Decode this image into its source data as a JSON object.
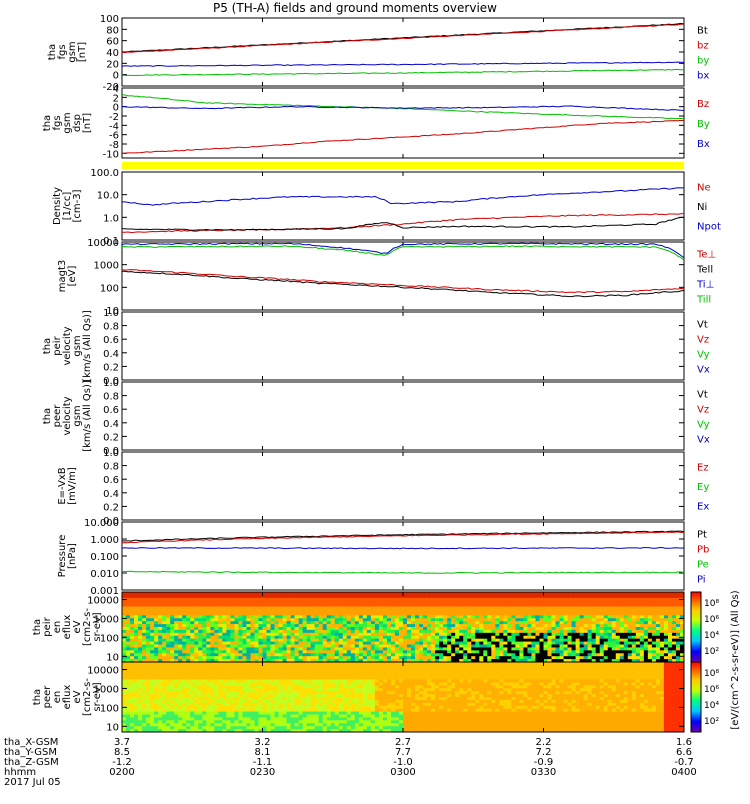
{
  "title": "P5 (TH-A) fields and ground moments overview",
  "colors": {
    "black": "#000000",
    "red": "#d00000",
    "green": "#00c000",
    "blue": "#0000c8",
    "yellow": "#ffff00"
  },
  "chart_data": [
    {
      "id": "fgs-gsm",
      "type": "line",
      "ylabel": [
        "tha",
        "fgs",
        "gsm",
        "[nT]"
      ],
      "yticks": [
        "100",
        "80",
        "60",
        "40",
        "20",
        "0",
        "-20"
      ],
      "ylim": [
        -20,
        100
      ],
      "series": [
        {
          "name": "Bt",
          "color": "#000000",
          "x": [
            0,
            1
          ],
          "y": [
            40,
            90
          ]
        },
        {
          "name": "bz",
          "color": "#d00000",
          "x": [
            0,
            1
          ],
          "y": [
            39,
            89
          ]
        },
        {
          "name": "by",
          "color": "#00c000",
          "x": [
            0,
            0.5,
            1
          ],
          "y": [
            -1,
            3,
            9
          ]
        },
        {
          "name": "bx",
          "color": "#0000c8",
          "x": [
            0,
            0.5,
            1
          ],
          "y": [
            15,
            18,
            22
          ]
        }
      ],
      "legend": [
        {
          "label": "Bt",
          "color": "#000000"
        },
        {
          "label": "bz",
          "color": "#d00000"
        },
        {
          "label": "by",
          "color": "#00c000"
        },
        {
          "label": "bx",
          "color": "#0000c8"
        }
      ]
    },
    {
      "id": "fgs-gsm-dsp",
      "type": "line",
      "ylabel": [
        "tha",
        "fgs",
        "gsm",
        "dsp",
        "[nT]"
      ],
      "yticks": [
        "4",
        "2",
        "0",
        "-2",
        "-4",
        "-6",
        "-8",
        "-10"
      ],
      "ylim": [
        -11,
        4
      ],
      "series": [
        {
          "name": "Bz",
          "color": "#d00000",
          "x": [
            0,
            0.1,
            0.25,
            0.35,
            0.5,
            0.6,
            0.75,
            0.85,
            1
          ],
          "y": [
            -10,
            -9.4,
            -8.5,
            -7.5,
            -6.5,
            -5.8,
            -4.5,
            -3.6,
            -3
          ]
        },
        {
          "name": "By",
          "color": "#00c000",
          "x": [
            0,
            0.05,
            0.15,
            0.3,
            0.5,
            0.6,
            0.75,
            0.9,
            1
          ],
          "y": [
            2.5,
            2,
            0.8,
            0.3,
            -0.4,
            -0.9,
            -1.6,
            -2.2,
            -2.6
          ]
        },
        {
          "name": "Bx",
          "color": "#0000c8",
          "x": [
            0,
            0.15,
            0.3,
            0.5,
            0.65,
            0.8,
            1
          ],
          "y": [
            0,
            -0.4,
            0,
            -0.3,
            -0.2,
            0.1,
            -0.8
          ]
        }
      ],
      "legend": [
        {
          "label": "Bz",
          "color": "#d00000"
        },
        {
          "label": "By",
          "color": "#00c000"
        },
        {
          "label": "Bx",
          "color": "#0000c8"
        }
      ]
    },
    {
      "id": "density",
      "type": "line",
      "scale": "log",
      "ylabel": [
        "Density",
        "[1/cc]",
        "[cm-3]"
      ],
      "yticks": [
        "100.0",
        "10.0",
        "1.0",
        "0.1"
      ],
      "ylim": [
        0.1,
        100
      ],
      "series": [
        {
          "name": "Ne",
          "color": "#d00000",
          "x": [
            0,
            0.1,
            0.25,
            0.4,
            0.5,
            0.6,
            0.8,
            1
          ],
          "y": [
            0.22,
            0.25,
            0.28,
            0.35,
            0.5,
            0.8,
            1.2,
            1.4
          ]
        },
        {
          "name": "Ni",
          "color": "#000000",
          "x": [
            0,
            0.2,
            0.4,
            0.47,
            0.5,
            0.6,
            0.8,
            0.95,
            1
          ],
          "y": [
            0.3,
            0.28,
            0.32,
            0.6,
            0.35,
            0.4,
            0.38,
            0.5,
            1.0
          ]
        },
        {
          "name": "Npot",
          "color": "#0000c8",
          "x": [
            0,
            0.05,
            0.15,
            0.3,
            0.45,
            0.48,
            0.6,
            0.75,
            0.9,
            1
          ],
          "y": [
            5,
            3.5,
            5,
            8,
            8,
            4,
            5,
            10,
            15,
            20
          ]
        }
      ],
      "legend": [
        {
          "label": "Ne",
          "color": "#d00000"
        },
        {
          "label": "Ni",
          "color": "#000000"
        },
        {
          "label": "Npot",
          "color": "#0000c8"
        }
      ]
    },
    {
      "id": "temperature",
      "type": "line",
      "scale": "log",
      "ylabel": [
        "magt3",
        "[eV]"
      ],
      "yticks": [
        "10000",
        "1000",
        "100",
        "10"
      ],
      "ylim": [
        10,
        10000
      ],
      "series": [
        {
          "name": "Te⊥",
          "color": "#d00000",
          "x": [
            0,
            0.1,
            0.2,
            0.35,
            0.5,
            0.65,
            0.8,
            0.9,
            1
          ],
          "y": [
            600,
            450,
            300,
            180,
            120,
            80,
            60,
            65,
            90
          ]
        },
        {
          "name": "Tell",
          "color": "#000000",
          "x": [
            0,
            0.1,
            0.2,
            0.35,
            0.5,
            0.65,
            0.8,
            0.9,
            1
          ],
          "y": [
            500,
            380,
            250,
            150,
            100,
            60,
            40,
            45,
            70
          ]
        },
        {
          "name": "Ti⊥",
          "color": "#0000c8",
          "x": [
            0,
            0.3,
            0.47,
            0.5,
            0.7,
            0.95,
            1
          ],
          "y": [
            8000,
            8500,
            3000,
            8000,
            8500,
            8000,
            2000
          ]
        },
        {
          "name": "Till",
          "color": "#00c000",
          "x": [
            0,
            0.3,
            0.47,
            0.5,
            0.7,
            0.95,
            1
          ],
          "y": [
            6000,
            6500,
            2500,
            6000,
            6500,
            6000,
            1500
          ]
        }
      ],
      "legend": [
        {
          "label": "Te⊥",
          "color": "#d00000"
        },
        {
          "label": "Tell",
          "color": "#000000"
        },
        {
          "label": "Ti⊥",
          "color": "#0000c8"
        },
        {
          "label": "Till",
          "color": "#00c000"
        }
      ]
    },
    {
      "id": "peir-velocity",
      "type": "line",
      "ylabel": [
        "tha",
        "peir",
        "velocity",
        "gsm",
        "[km/s (All Qs)]"
      ],
      "yticks": [
        "1.0",
        "0.8",
        "0.6",
        "0.4",
        "0.2",
        "0.0"
      ],
      "ylim": [
        0,
        1
      ],
      "series": [],
      "legend": [
        {
          "label": "Vt",
          "color": "#000000"
        },
        {
          "label": "Vz",
          "color": "#d00000"
        },
        {
          "label": "Vy",
          "color": "#00c000"
        },
        {
          "label": "Vx",
          "color": "#0000c8"
        }
      ]
    },
    {
      "id": "peer-velocity",
      "type": "line",
      "ylabel": [
        "tha",
        "peer",
        "velocity",
        "gsm",
        "[km/s (All Qs)]"
      ],
      "yticks": [
        "1.0",
        "0.8",
        "0.6",
        "0.4",
        "0.2",
        "0.0"
      ],
      "ylim": [
        0,
        1
      ],
      "series": [],
      "legend": [
        {
          "label": "Vt",
          "color": "#000000"
        },
        {
          "label": "Vz",
          "color": "#d00000"
        },
        {
          "label": "Vy",
          "color": "#00c000"
        },
        {
          "label": "Vx",
          "color": "#0000c8"
        }
      ]
    },
    {
      "id": "efield",
      "type": "line",
      "ylabel": [
        "E=-VxB",
        "[mV/m]"
      ],
      "yticks": [
        "1.0",
        "0.8",
        "0.6",
        "0.4",
        "0.2",
        "0.0"
      ],
      "ylim": [
        0,
        1
      ],
      "series": [],
      "legend": [
        {
          "label": "Ez",
          "color": "#d00000"
        },
        {
          "label": "Ey",
          "color": "#00c000"
        },
        {
          "label": "Ex",
          "color": "#0000c8"
        }
      ]
    },
    {
      "id": "pressure",
      "type": "line",
      "scale": "log",
      "ylabel": [
        "Pressure",
        "[nPa]"
      ],
      "yticks": [
        "10.000",
        "1.000",
        "0.100",
        "0.010",
        "0.001"
      ],
      "ylim": [
        0.001,
        10
      ],
      "series": [
        {
          "name": "Pt",
          "color": "#000000",
          "x": [
            0,
            1
          ],
          "y": [
            0.75,
            2.8
          ]
        },
        {
          "name": "Pb",
          "color": "#d00000",
          "x": [
            0,
            1
          ],
          "y": [
            0.6,
            2.5
          ]
        },
        {
          "name": "Pe",
          "color": "#00c000",
          "x": [
            0,
            0.5,
            1
          ],
          "y": [
            0.012,
            0.01,
            0.011
          ]
        },
        {
          "name": "Pi",
          "color": "#0000c8",
          "x": [
            0,
            0.5,
            1
          ],
          "y": [
            0.3,
            0.28,
            0.3
          ]
        }
      ],
      "legend": [
        {
          "label": "Pt",
          "color": "#000000"
        },
        {
          "label": "Pb",
          "color": "#d00000"
        },
        {
          "label": "Pe",
          "color": "#00c000"
        },
        {
          "label": "Pi",
          "color": "#0000c8"
        }
      ]
    },
    {
      "id": "peir-spectrogram",
      "type": "heatmap",
      "ylabel": [
        "tha",
        "peir",
        "en",
        "eflux",
        "eV",
        "[cm2-s-",
        "sr-eV]"
      ],
      "yticks": [
        "10000",
        "1000",
        "100",
        "10"
      ],
      "ylim": [
        5,
        25000
      ]
    },
    {
      "id": "peer-spectrogram",
      "type": "heatmap",
      "ylabel": [
        "tha",
        "peer",
        "en",
        "eflux",
        "eV",
        "[cm2-s-",
        "sr-eV]"
      ],
      "yticks": [
        "10000",
        "1000",
        "100",
        "10"
      ],
      "ylim": [
        5,
        25000
      ]
    }
  ],
  "colorbar": {
    "label": "[eV/(cm^2-s-sr-eV)] (All Qs)",
    "ticks_top": [
      "10⁸",
      "10⁶",
      "10⁴",
      "10²"
    ],
    "ticks_bottom": [
      "10⁸",
      "10⁶",
      "10⁴",
      "10²"
    ]
  },
  "xaxis": {
    "row_labels": [
      "tha_X-GSM",
      "tha_Y-GSM",
      "tha_Z-GSM",
      "hhmm",
      "2017 Jul 05"
    ],
    "ticks": [
      {
        "x": "3.7",
        "y": "8.5",
        "z": "-1.2",
        "t": "0200"
      },
      {
        "x": "3.2",
        "y": "8.1",
        "z": "-1.1",
        "t": "0230"
      },
      {
        "x": "2.7",
        "y": "7.7",
        "z": "-1.0",
        "t": "0300"
      },
      {
        "x": "2.2",
        "y": "7.2",
        "z": "-0.9",
        "t": "0330"
      },
      {
        "x": "1.6",
        "y": "6.6",
        "z": "-0.7",
        "t": "0400"
      }
    ]
  }
}
